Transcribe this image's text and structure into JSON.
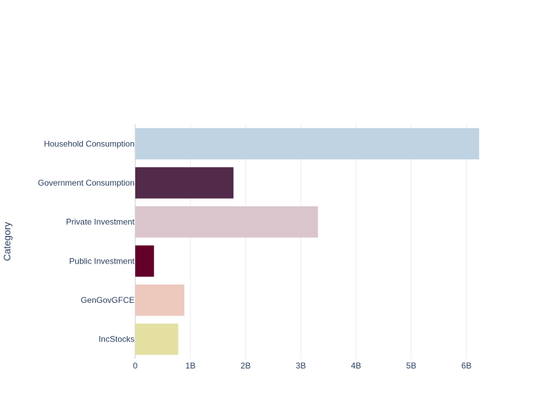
{
  "chart_data": {
    "type": "bar",
    "orientation": "horizontal",
    "title": "",
    "xlabel": "",
    "ylabel": "Category",
    "categories": [
      "Household Consumption",
      "Government Consumption",
      "Private Investment",
      "Public Investment",
      "GenGovGFCE",
      "IncStocks"
    ],
    "values": [
      6230000000,
      1780000000,
      3310000000,
      340000000,
      890000000,
      780000000
    ],
    "colors": [
      "#bfd3e3",
      "#522a4a",
      "#dbc5cd",
      "#63002a",
      "#ecc8bd",
      "#e4e0a2"
    ],
    "xlim": [
      0,
      6500000000
    ],
    "xticks": [
      {
        "value": 0,
        "label": "0"
      },
      {
        "value": 1000000000,
        "label": "1B"
      },
      {
        "value": 2000000000,
        "label": "2B"
      },
      {
        "value": 3000000000,
        "label": "3B"
      },
      {
        "value": 4000000000,
        "label": "4B"
      },
      {
        "value": 5000000000,
        "label": "5B"
      },
      {
        "value": 6000000000,
        "label": "6B"
      }
    ],
    "grid": true,
    "legend": "none"
  }
}
